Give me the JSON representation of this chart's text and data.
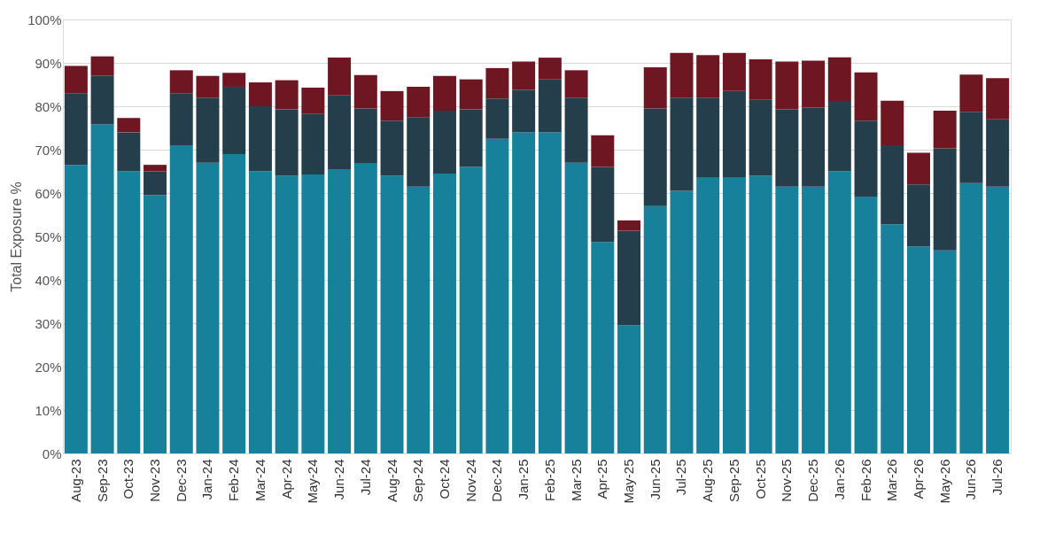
{
  "chart_data": {
    "type": "bar",
    "stacked": true,
    "ylabel": "Total Exposure %",
    "categories": [
      "Aug-23",
      "Sep-23",
      "Oct-23",
      "Nov-23",
      "Dec-23",
      "Jan-24",
      "Feb-24",
      "Mar-24",
      "Apr-24",
      "May-24",
      "Jun-24",
      "Jul-24",
      "Aug-24",
      "Sep-24",
      "Oct-24",
      "Nov-24",
      "Dec-24",
      "Jan-25",
      "Feb-25",
      "Mar-25",
      "Apr-25",
      "May-25",
      "Jun-25",
      "Jul-25",
      "Aug-25",
      "Sep-25",
      "Oct-25",
      "Nov-25",
      "Dec-25",
      "Jan-26",
      "Feb-26",
      "Mar-26",
      "Apr-26",
      "May-26",
      "Jun-26",
      "Jul-26"
    ],
    "series": [
      {
        "color": "#17819b",
        "values": [
          66.5,
          75.8,
          65,
          59.5,
          71,
          67,
          69,
          65,
          64,
          64.3,
          65.5,
          66.8,
          64,
          61.5,
          64.5,
          66,
          72.5,
          74,
          74,
          67,
          48.7,
          29.5,
          57,
          60.5,
          63.5,
          63.5,
          64,
          61.5,
          61.5,
          65,
          59.2,
          52.8,
          47.7,
          46.8,
          62.3,
          61.5
        ]
      },
      {
        "color": "#243f4b",
        "values": [
          16.5,
          11.2,
          9,
          5.5,
          12,
          15,
          15.5,
          15,
          15.3,
          14,
          17,
          12.7,
          12.7,
          16,
          14.5,
          13.3,
          9.3,
          9.8,
          12.2,
          15,
          17.3,
          21.8,
          22.5,
          21.5,
          18.5,
          20,
          17.5,
          17.8,
          18.2,
          16.2,
          17.5,
          18.2,
          14.3,
          23.5,
          16.4,
          15.5
        ]
      },
      {
        "color": "#6e1622",
        "values": [
          6.3,
          4.5,
          3.3,
          1.5,
          5.3,
          5,
          3.2,
          5.5,
          6.7,
          6,
          8.7,
          7.7,
          6.8,
          7,
          8,
          6.9,
          7,
          6.5,
          5,
          6.3,
          7.3,
          2.4,
          9.5,
          10.3,
          9.8,
          8.8,
          9.3,
          11,
          10.8,
          10.1,
          11.1,
          10.3,
          7.3,
          8.7,
          8.6,
          9.5
        ]
      }
    ],
    "ylim": [
      0,
      100
    ],
    "yticks": [
      {
        "value": 0,
        "label": "0%"
      },
      {
        "value": 10,
        "label": "10%"
      },
      {
        "value": 20,
        "label": "20%"
      },
      {
        "value": 30,
        "label": "30%"
      },
      {
        "value": 40,
        "label": "40%"
      },
      {
        "value": 50,
        "label": "50%"
      },
      {
        "value": 60,
        "label": "60%"
      },
      {
        "value": 70,
        "label": "70%"
      },
      {
        "value": 80,
        "label": "80%"
      },
      {
        "value": 90,
        "label": "90%"
      },
      {
        "value": 100,
        "label": "100%"
      }
    ],
    "grid": "y",
    "legend": false
  }
}
